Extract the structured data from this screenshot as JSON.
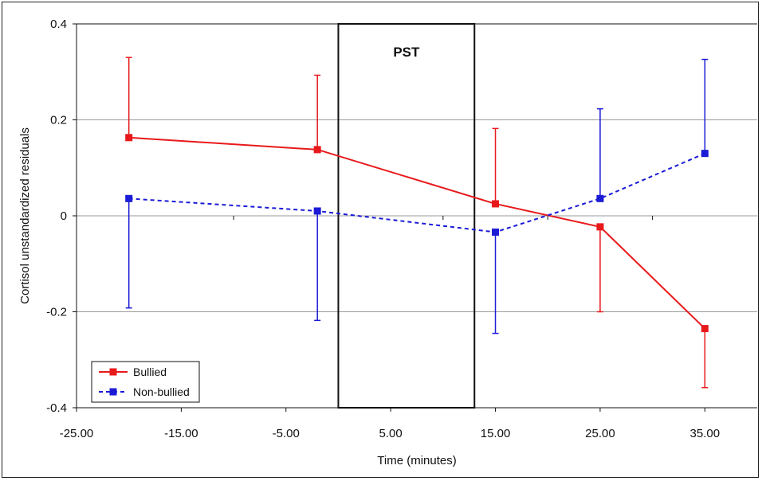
{
  "chart_data": {
    "type": "line",
    "title": "",
    "xlabel": "Time (minutes)",
    "ylabel": "Cortisol unstandardized residuals",
    "xlim": [
      -25,
      40
    ],
    "ylim": [
      -0.4,
      0.4
    ],
    "x_ticks": [
      "-25.00",
      "-15.00",
      "-5.00",
      "5.00",
      "15.00",
      "25.00",
      "35.00"
    ],
    "y_ticks": [
      "-0.4",
      "-0.2",
      "0",
      "0.2",
      "0.4"
    ],
    "grid": "horizontal",
    "legend_position": "bottom-left",
    "annotation": {
      "text": "PST",
      "x_range": [
        0,
        13
      ]
    },
    "series": [
      {
        "name": "Bullied",
        "color": "#e8191b",
        "line_style": "solid",
        "x": [
          -20,
          -2,
          15,
          25,
          35
        ],
        "y": [
          0.163,
          0.138,
          0.025,
          -0.023,
          -0.235
        ],
        "error_upper": [
          0.33,
          0.293,
          0.182,
          0.0,
          0.0
        ],
        "error_lower": [
          0.0,
          0.0,
          0.0,
          -0.2,
          -0.358
        ]
      },
      {
        "name": "Non-bullied",
        "color": "#1b1bd6",
        "line_style": "dashed",
        "x": [
          -20,
          -2,
          15,
          25,
          35
        ],
        "y": [
          0.036,
          0.01,
          -0.034,
          0.036,
          0.13
        ],
        "error_upper": [
          0.0,
          0.0,
          0.0,
          0.223,
          0.326
        ],
        "error_lower": [
          -0.192,
          -0.218,
          -0.245,
          0.0,
          0.0
        ]
      }
    ]
  }
}
